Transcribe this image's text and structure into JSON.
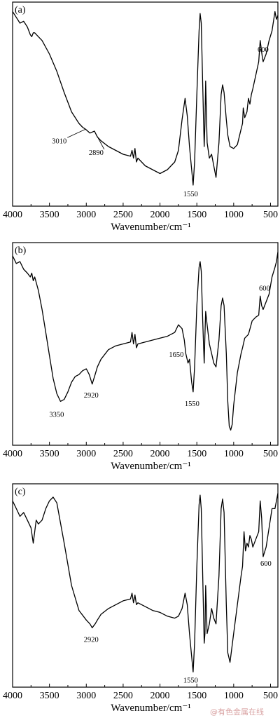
{
  "watermark": "@有色金属在线",
  "chart_data": [
    {
      "type": "line",
      "panel_label": "(a)",
      "xlabel": "Wavenumber/cm⁻¹",
      "xlim": [
        4000,
        400
      ],
      "x_reversed": true,
      "xticks": [
        4000,
        3500,
        3000,
        2500,
        2000,
        1500,
        1000,
        500
      ],
      "y_shown": false,
      "series": [
        {
          "x": [
            4000,
            3950,
            3900,
            3850,
            3800,
            3760,
            3740,
            3720,
            3700,
            3650,
            3600,
            3500,
            3400,
            3300,
            3200,
            3100,
            3050,
            3010,
            2950,
            2890,
            2850,
            2800,
            2700,
            2600,
            2500,
            2400,
            2380,
            2360,
            2340,
            2320,
            2300,
            2200,
            2100,
            2000,
            1900,
            1800,
            1750,
            1700,
            1660,
            1630,
            1600,
            1570,
            1550,
            1530,
            1500,
            1470,
            1455,
            1440,
            1420,
            1400,
            1390,
            1380,
            1360,
            1330,
            1300,
            1270,
            1240,
            1200,
            1170,
            1150,
            1130,
            1100,
            1080,
            1050,
            1000,
            950,
            900,
            880,
            870,
            850,
            820,
            800,
            780,
            760,
            740,
            700,
            660,
            640,
            630,
            620,
            610,
            600,
            560,
            520,
            480,
            460,
            440,
            420,
            400
          ],
          "y": [
            0.98,
            0.95,
            0.92,
            0.93,
            0.9,
            0.86,
            0.85,
            0.87,
            0.87,
            0.85,
            0.83,
            0.76,
            0.67,
            0.56,
            0.46,
            0.4,
            0.38,
            0.37,
            0.35,
            0.36,
            0.33,
            0.31,
            0.28,
            0.26,
            0.24,
            0.23,
            0.26,
            0.22,
            0.27,
            0.2,
            0.22,
            0.18,
            0.16,
            0.14,
            0.16,
            0.2,
            0.26,
            0.42,
            0.53,
            0.44,
            0.28,
            0.16,
            0.08,
            0.2,
            0.55,
            0.88,
            0.97,
            0.92,
            0.6,
            0.28,
            0.4,
            0.62,
            0.3,
            0.22,
            0.24,
            0.18,
            0.12,
            0.3,
            0.55,
            0.6,
            0.56,
            0.42,
            0.34,
            0.28,
            0.27,
            0.29,
            0.37,
            0.4,
            0.48,
            0.43,
            0.46,
            0.53,
            0.5,
            0.55,
            0.58,
            0.65,
            0.72,
            0.83,
            0.8,
            0.77,
            0.74,
            0.72,
            0.76,
            0.83,
            0.88,
            0.93,
            0.98,
            0.94,
            0.96
          ]
        }
      ],
      "annotations": [
        {
          "text": "3010",
          "x": 3010,
          "y": 0.37
        },
        {
          "text": "2890",
          "x": 2890,
          "y": 0.36
        },
        {
          "text": "1550",
          "x": 1550,
          "y": 0.08
        },
        {
          "text": "600",
          "x": 600,
          "y": 0.72
        }
      ]
    },
    {
      "type": "line",
      "panel_label": "(b)",
      "xlabel": "Wavenumber/cm⁻¹",
      "xlim": [
        4000,
        400
      ],
      "x_reversed": true,
      "xticks": [
        4000,
        3500,
        3000,
        2500,
        2000,
        1500,
        1000,
        500
      ],
      "y_shown": false,
      "series": [
        {
          "x": [
            4000,
            3950,
            3900,
            3850,
            3800,
            3760,
            3740,
            3720,
            3700,
            3650,
            3600,
            3550,
            3500,
            3450,
            3400,
            3350,
            3300,
            3250,
            3200,
            3150,
            3100,
            3050,
            3000,
            2960,
            2920,
            2880,
            2850,
            2800,
            2700,
            2600,
            2500,
            2400,
            2380,
            2360,
            2340,
            2320,
            2300,
            2200,
            2100,
            2000,
            1900,
            1800,
            1750,
            1700,
            1670,
            1650,
            1620,
            1600,
            1570,
            1550,
            1530,
            1500,
            1470,
            1455,
            1440,
            1420,
            1400,
            1390,
            1380,
            1360,
            1330,
            1300,
            1270,
            1240,
            1200,
            1170,
            1150,
            1130,
            1100,
            1080,
            1060,
            1040,
            1020,
            1000,
            950,
            900,
            880,
            850,
            800,
            750,
            700,
            660,
            640,
            620,
            600,
            560,
            520,
            480,
            440,
            420,
            400
          ],
          "y": [
            0.96,
            0.92,
            0.93,
            0.89,
            0.87,
            0.85,
            0.87,
            0.83,
            0.85,
            0.78,
            0.68,
            0.56,
            0.44,
            0.32,
            0.24,
            0.2,
            0.21,
            0.25,
            0.3,
            0.33,
            0.34,
            0.36,
            0.37,
            0.34,
            0.29,
            0.34,
            0.38,
            0.42,
            0.47,
            0.49,
            0.5,
            0.51,
            0.56,
            0.5,
            0.55,
            0.48,
            0.5,
            0.51,
            0.52,
            0.53,
            0.54,
            0.56,
            0.6,
            0.58,
            0.52,
            0.45,
            0.4,
            0.42,
            0.3,
            0.25,
            0.38,
            0.7,
            0.9,
            0.93,
            0.88,
            0.62,
            0.4,
            0.55,
            0.67,
            0.6,
            0.5,
            0.45,
            0.4,
            0.38,
            0.52,
            0.7,
            0.74,
            0.7,
            0.45,
            0.2,
            0.07,
            0.05,
            0.08,
            0.18,
            0.35,
            0.45,
            0.48,
            0.53,
            0.55,
            0.62,
            0.64,
            0.65,
            0.75,
            0.7,
            0.68,
            0.72,
            0.76,
            0.85,
            0.9,
            0.93,
            0.98
          ]
        }
      ],
      "annotations": [
        {
          "text": "3350",
          "x": 3350,
          "y": 0.2
        },
        {
          "text": "2920",
          "x": 2920,
          "y": 0.29
        },
        {
          "text": "1650",
          "x": 1650,
          "y": 0.45
        },
        {
          "text": "1550",
          "x": 1550,
          "y": 0.25
        },
        {
          "text": "600",
          "x": 600,
          "y": 0.72
        }
      ]
    },
    {
      "type": "line",
      "panel_label": "(c)",
      "xlabel": "Wavenumber/cm⁻¹",
      "xlim": [
        4000,
        400
      ],
      "x_reversed": true,
      "xticks": [
        4000,
        3500,
        3000,
        2500,
        2000,
        1500,
        1000,
        500
      ],
      "y_shown": false,
      "series": [
        {
          "x": [
            4000,
            3950,
            3900,
            3850,
            3800,
            3750,
            3720,
            3700,
            3680,
            3650,
            3600,
            3550,
            3500,
            3450,
            3400,
            3300,
            3200,
            3100,
            3000,
            2950,
            2920,
            2880,
            2850,
            2800,
            2700,
            2600,
            2500,
            2400,
            2380,
            2360,
            2340,
            2320,
            2300,
            2200,
            2100,
            2000,
            1900,
            1800,
            1750,
            1700,
            1660,
            1630,
            1600,
            1570,
            1550,
            1530,
            1500,
            1470,
            1455,
            1440,
            1420,
            1400,
            1390,
            1380,
            1360,
            1330,
            1300,
            1270,
            1240,
            1200,
            1170,
            1150,
            1130,
            1100,
            1080,
            1050,
            1000,
            950,
            900,
            880,
            860,
            840,
            820,
            800,
            780,
            760,
            740,
            700,
            660,
            640,
            620,
            600,
            560,
            520,
            480,
            440,
            420,
            400
          ],
          "y": [
            0.94,
            0.9,
            0.86,
            0.88,
            0.84,
            0.8,
            0.72,
            0.78,
            0.84,
            0.82,
            0.84,
            0.9,
            0.94,
            0.96,
            0.93,
            0.72,
            0.5,
            0.37,
            0.32,
            0.3,
            0.28,
            0.3,
            0.32,
            0.35,
            0.38,
            0.4,
            0.42,
            0.43,
            0.46,
            0.41,
            0.45,
            0.4,
            0.41,
            0.39,
            0.37,
            0.36,
            0.34,
            0.33,
            0.34,
            0.38,
            0.46,
            0.4,
            0.25,
            0.13,
            0.05,
            0.2,
            0.6,
            0.92,
            0.97,
            0.9,
            0.55,
            0.2,
            0.25,
            0.5,
            0.25,
            0.3,
            0.38,
            0.33,
            0.3,
            0.55,
            0.9,
            0.95,
            0.88,
            0.4,
            0.15,
            0.1,
            0.25,
            0.4,
            0.55,
            0.6,
            0.78,
            0.68,
            0.72,
            0.7,
            0.76,
            0.74,
            0.7,
            0.74,
            0.78,
            0.94,
            0.85,
            0.65,
            0.7,
            0.8,
            0.9,
            0.9,
            0.94,
            0.98
          ]
        }
      ],
      "annotations": [
        {
          "text": "2920",
          "x": 2920,
          "y": 0.28
        },
        {
          "text": "1550",
          "x": 1550,
          "y": 0.05
        },
        {
          "text": "600",
          "x": 600,
          "y": 0.65
        }
      ]
    }
  ]
}
